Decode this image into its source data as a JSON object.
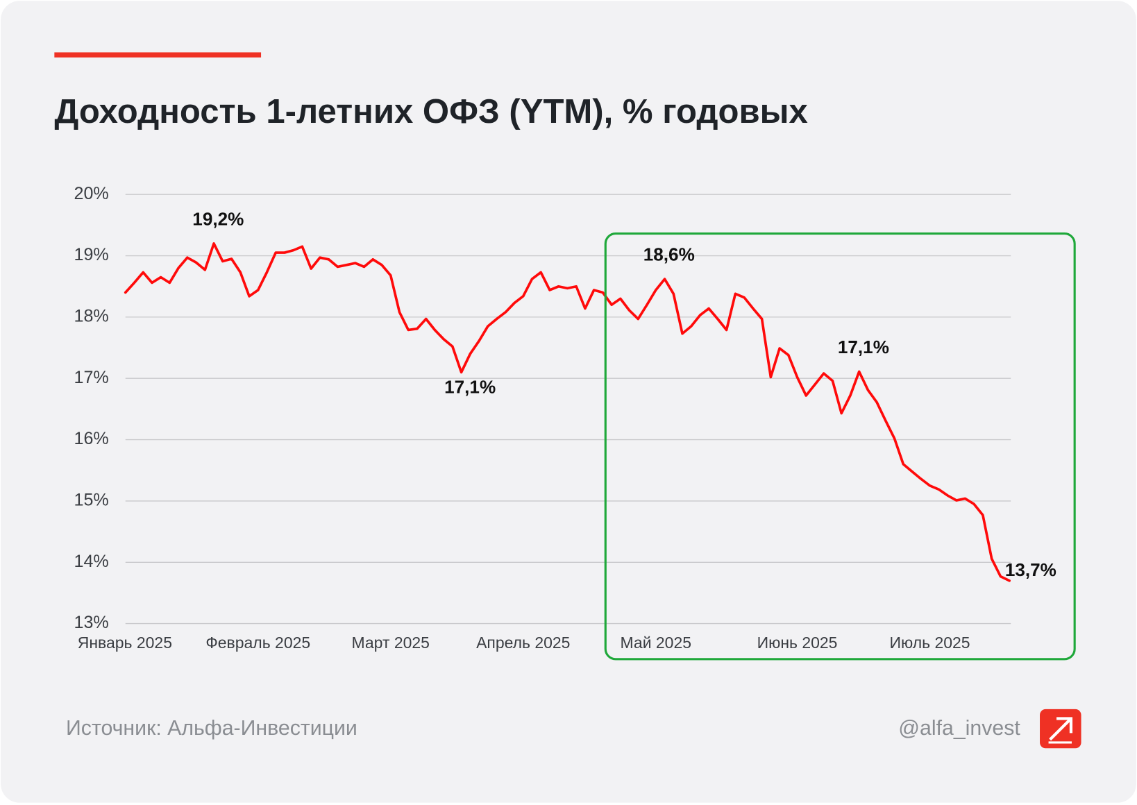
{
  "chart_data": {
    "type": "line",
    "title": "Доходность 1-летних ОФЗ (YTM), % годовых",
    "color": "#ff0a0a",
    "grid": true,
    "ylim": [
      13,
      20
    ],
    "yticks": [
      {
        "value": 13,
        "label": "13%"
      },
      {
        "value": 14,
        "label": "14%"
      },
      {
        "value": 15,
        "label": "15%"
      },
      {
        "value": 16,
        "label": "16%"
      },
      {
        "value": 17,
        "label": "17%"
      },
      {
        "value": 18,
        "label": "18%"
      },
      {
        "value": 19,
        "label": "19%"
      },
      {
        "value": 20,
        "label": "20%"
      }
    ],
    "categories": [
      "Январь 2025",
      null,
      null,
      null,
      null,
      null,
      null,
      null,
      null,
      null,
      null,
      null,
      null,
      null,
      null,
      "Февраль 2025",
      null,
      null,
      null,
      null,
      null,
      null,
      null,
      null,
      null,
      null,
      null,
      null,
      null,
      null,
      "Март 2025",
      null,
      null,
      null,
      null,
      null,
      null,
      null,
      null,
      null,
      null,
      null,
      null,
      null,
      null,
      "Апрель 2025",
      null,
      null,
      null,
      null,
      null,
      null,
      null,
      null,
      null,
      null,
      null,
      null,
      null,
      null,
      "Май 2025",
      null,
      null,
      null,
      null,
      null,
      null,
      null,
      null,
      null,
      null,
      null,
      null,
      null,
      null,
      null,
      "Июнь 2025",
      null,
      null,
      null,
      null,
      null,
      null,
      null,
      null,
      null,
      null,
      null,
      null,
      null,
      null,
      "Июль 2025",
      null,
      null,
      null,
      null,
      null,
      null,
      null,
      null,
      null
    ],
    "values": [
      18.4,
      18.56,
      18.73,
      18.56,
      18.65,
      18.56,
      18.8,
      18.97,
      18.89,
      18.77,
      19.2,
      18.91,
      18.95,
      18.73,
      18.34,
      18.44,
      18.73,
      19.05,
      19.05,
      19.09,
      19.15,
      18.79,
      18.97,
      18.94,
      18.82,
      18.85,
      18.88,
      18.82,
      18.94,
      18.85,
      18.68,
      18.08,
      17.79,
      17.81,
      17.97,
      17.79,
      17.64,
      17.52,
      17.1,
      17.4,
      17.61,
      17.85,
      17.97,
      18.08,
      18.23,
      18.34,
      18.62,
      18.73,
      18.44,
      18.5,
      18.47,
      18.5,
      18.14,
      18.44,
      18.4,
      18.2,
      18.3,
      18.11,
      17.97,
      18.2,
      18.44,
      18.62,
      18.38,
      17.73,
      17.85,
      18.03,
      18.14,
      17.97,
      17.79,
      18.38,
      18.32,
      18.14,
      17.97,
      17.02,
      17.49,
      17.38,
      17.02,
      16.72,
      16.9,
      17.08,
      16.96,
      16.43,
      16.72,
      17.11,
      16.81,
      16.61,
      16.31,
      16.02,
      15.6,
      15.48,
      15.36,
      15.25,
      15.19,
      15.09,
      15.01,
      15.04,
      14.95,
      14.77,
      14.06,
      13.77,
      13.7
    ],
    "value_labels": [
      null,
      null,
      null,
      null,
      null,
      null,
      null,
      null,
      null,
      null,
      "19,2%",
      null,
      null,
      null,
      null,
      null,
      null,
      null,
      null,
      null,
      null,
      null,
      null,
      null,
      null,
      null,
      null,
      null,
      null,
      null,
      null,
      null,
      null,
      null,
      null,
      null,
      null,
      null,
      "17,1%",
      null,
      null,
      null,
      null,
      null,
      null,
      null,
      null,
      null,
      null,
      null,
      null,
      null,
      null,
      null,
      null,
      null,
      null,
      null,
      null,
      null,
      null,
      "18,6%",
      null,
      null,
      null,
      null,
      null,
      null,
      null,
      null,
      null,
      null,
      null,
      null,
      null,
      null,
      null,
      null,
      null,
      null,
      null,
      null,
      null,
      "17,1%",
      null,
      null,
      null,
      null,
      null,
      null,
      null,
      null,
      null,
      null,
      null,
      null,
      null,
      null,
      null,
      null,
      "13,7%"
    ]
  },
  "footer": {
    "source": "Источник: Альфа-Инвестиции",
    "handle": "@alfa_invest"
  }
}
